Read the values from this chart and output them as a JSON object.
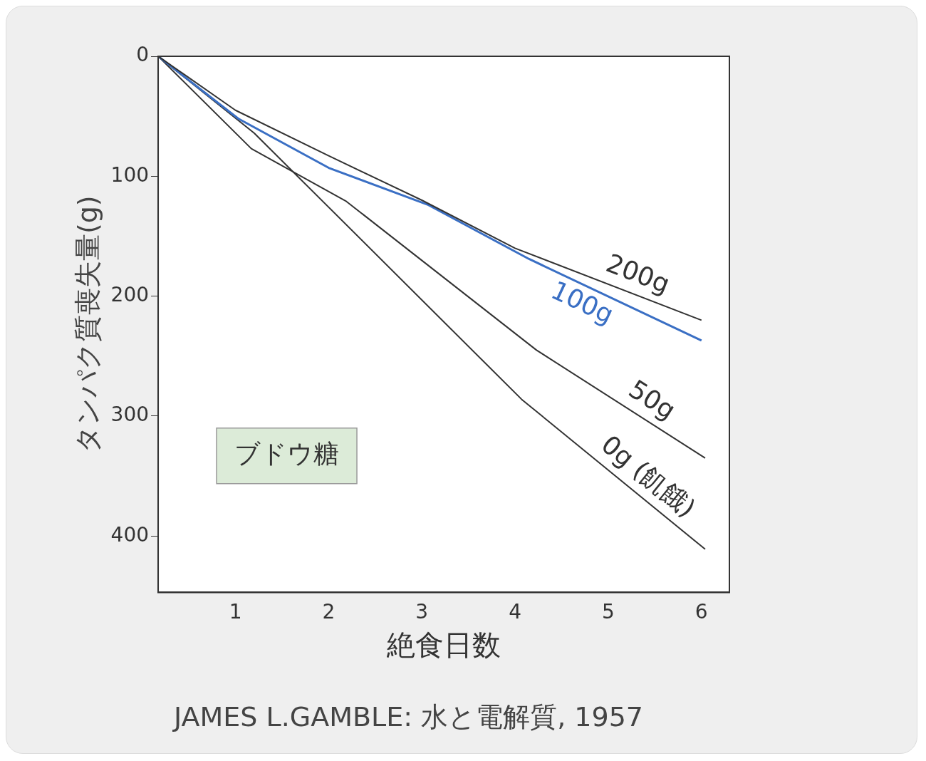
{
  "chart_data": {
    "type": "line",
    "xlabel": "絶食日数",
    "ylabel": "タンパク質喪失量(g)",
    "xlim": [
      0.17,
      6.3
    ],
    "xticks": [
      1,
      2,
      3,
      4,
      5,
      6
    ],
    "ylim": [
      447,
      0
    ],
    "yticks": [
      0,
      100,
      200,
      300,
      400
    ],
    "grid": false,
    "legend": false,
    "marker": "none",
    "line_style": "solid",
    "series": [
      {
        "name": "200g",
        "color": "#333333",
        "x": [
          0.17,
          1,
          2,
          3,
          4,
          6
        ],
        "values": [
          0,
          45,
          83,
          120,
          160,
          220
        ]
      },
      {
        "name": "100g",
        "color": "#3a6fc4",
        "x": [
          0.17,
          1.03,
          2,
          3.07,
          4.15,
          6
        ],
        "values": [
          0,
          52,
          93,
          124,
          169,
          237
        ]
      },
      {
        "name": "50g",
        "color": "#333333",
        "x": [
          0.17,
          1.17,
          2.19,
          4.23,
          6.04
        ],
        "values": [
          0,
          77,
          121,
          245,
          335
        ]
      },
      {
        "name": "0g (飢餓)",
        "color": "#333333",
        "x": [
          0.17,
          1.2,
          4.07,
          6.04
        ],
        "values": [
          0,
          64,
          286,
          411
        ]
      }
    ],
    "annotations": [
      "ブドウ糖",
      "JAMES L.GAMBLE: 水と電解質, 1957"
    ]
  }
}
